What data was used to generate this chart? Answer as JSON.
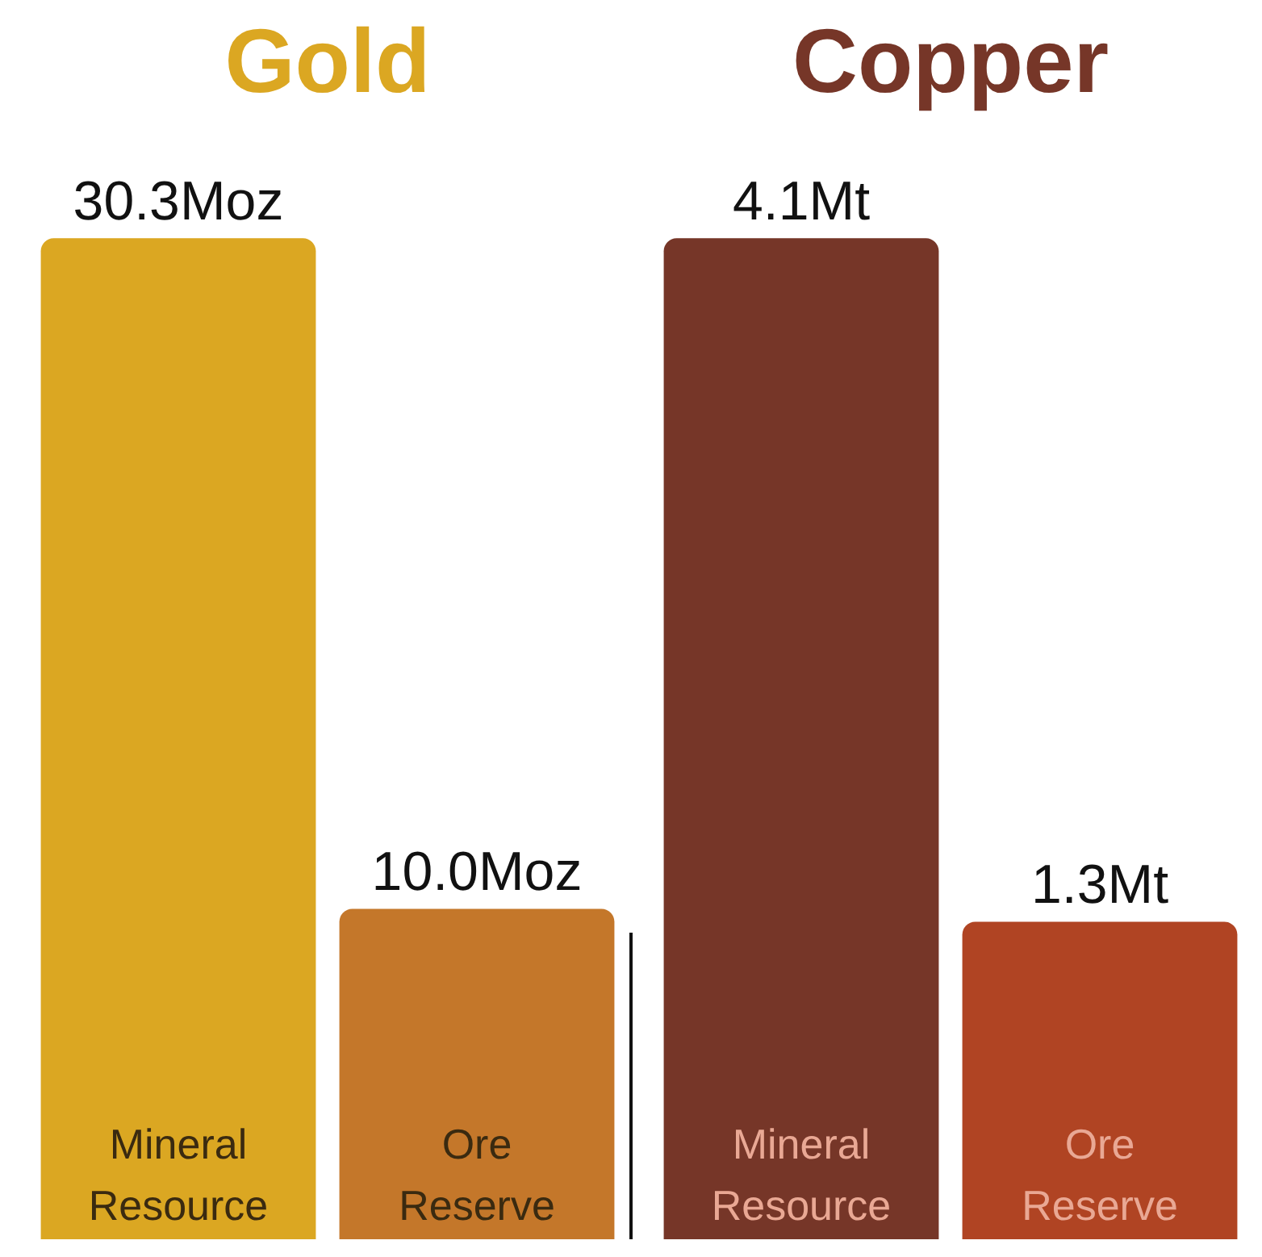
{
  "chart_data": [
    {
      "type": "bar",
      "title": "Gold",
      "categories": [
        "Mineral Resource",
        "Ore Reserve"
      ],
      "values": [
        30.3,
        10.0
      ],
      "colors": [
        "#dba722",
        "#c4772a"
      ],
      "value_labels": [
        "30.3Moz",
        "10.0Moz"
      ]
    },
    {
      "type": "bar",
      "title": "Copper",
      "categories": [
        "Mineral Resource",
        "Ore Reserve"
      ],
      "values": [
        4.1,
        1.3
      ],
      "colors": [
        "#763628",
        "#b04423"
      ],
      "value_labels": [
        "4.1Mt",
        "1.3Mt"
      ]
    }
  ]
}
